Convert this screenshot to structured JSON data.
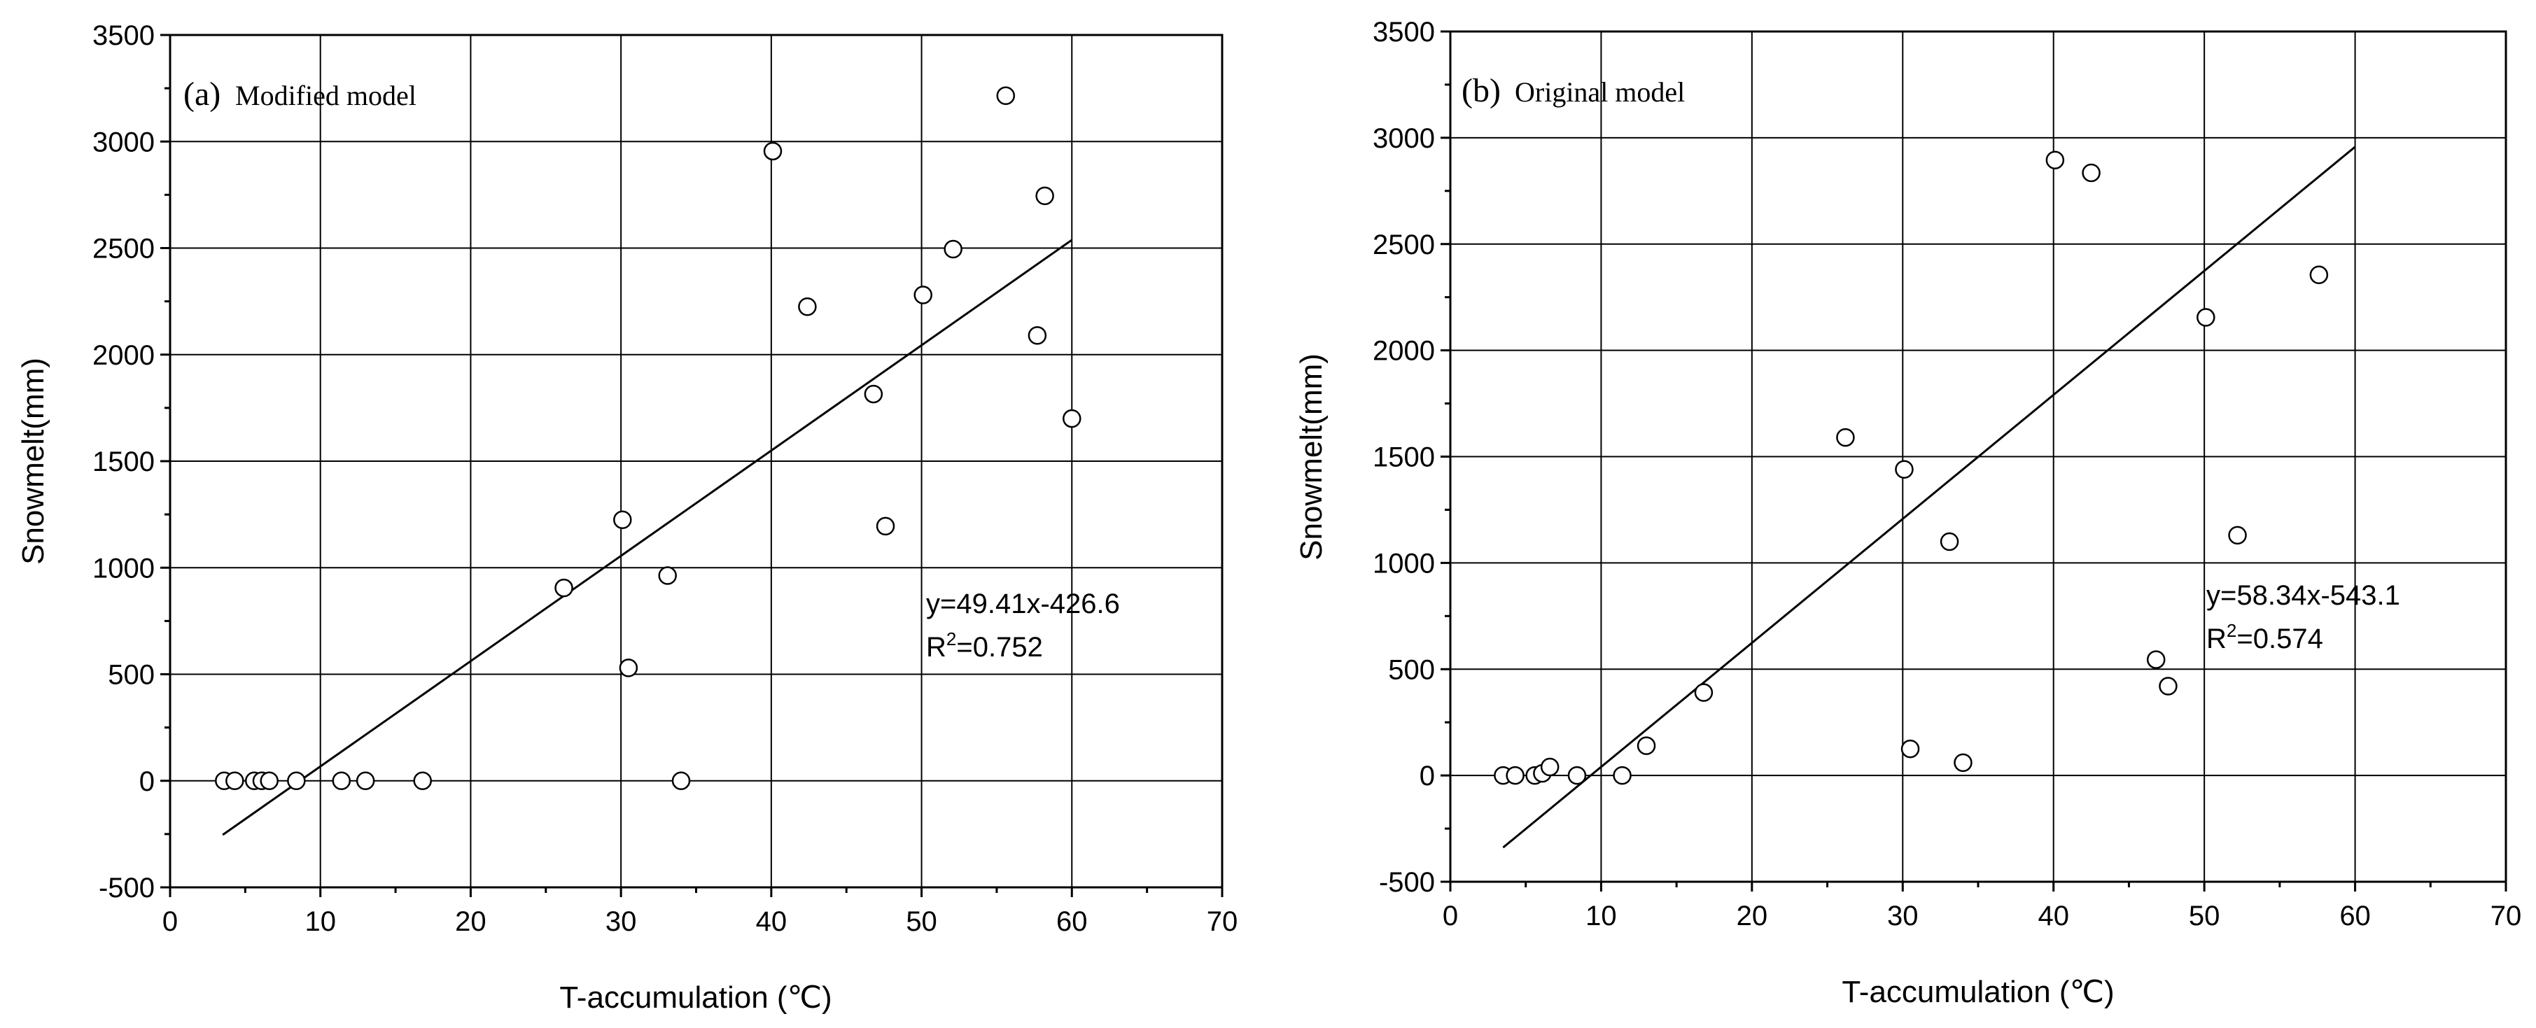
{
  "chart_data": [
    {
      "type": "scatter",
      "panel_label": "(a)",
      "subtitle": "Modified model",
      "xlabel": "T-accumulation (℃)",
      "ylabel": "Snowmelt(mm)",
      "xlim": [
        0,
        70
      ],
      "ylim": [
        -500,
        3500
      ],
      "xticks": [
        0,
        10,
        20,
        30,
        40,
        50,
        60,
        70
      ],
      "yticks": [
        -500,
        0,
        500,
        1000,
        1500,
        2000,
        2500,
        3000,
        3500
      ],
      "grid": true,
      "points": [
        {
          "x": 3.6,
          "y": 0
        },
        {
          "x": 4.3,
          "y": 0
        },
        {
          "x": 5.6,
          "y": 0
        },
        {
          "x": 6.1,
          "y": 0
        },
        {
          "x": 6.6,
          "y": 0
        },
        {
          "x": 8.4,
          "y": 0
        },
        {
          "x": 11.4,
          "y": 0
        },
        {
          "x": 13.0,
          "y": 0
        },
        {
          "x": 16.8,
          "y": 0
        },
        {
          "x": 26.2,
          "y": 905
        },
        {
          "x": 30.1,
          "y": 1225
        },
        {
          "x": 30.5,
          "y": 530
        },
        {
          "x": 33.1,
          "y": 963
        },
        {
          "x": 34.0,
          "y": 0
        },
        {
          "x": 40.1,
          "y": 2955
        },
        {
          "x": 42.4,
          "y": 2225
        },
        {
          "x": 46.8,
          "y": 1815
        },
        {
          "x": 47.6,
          "y": 1195
        },
        {
          "x": 50.1,
          "y": 2280
        },
        {
          "x": 52.1,
          "y": 2495
        },
        {
          "x": 55.6,
          "y": 3215
        },
        {
          "x": 57.7,
          "y": 2090
        },
        {
          "x": 58.2,
          "y": 2745
        },
        {
          "x": 60.0,
          "y": 1700
        }
      ],
      "fit": {
        "slope": 49.41,
        "intercept": -426.6,
        "x_range": [
          3.5,
          60.0
        ]
      },
      "equation": "y=49.41x-426.6",
      "r2_prefix": "R",
      "r2_sup": "2",
      "r2_value": "=0.752"
    },
    {
      "type": "scatter",
      "panel_label": "(b)",
      "subtitle": "Original model",
      "xlabel": "T-accumulation (℃)",
      "ylabel": "Snowmelt(mm)",
      "xlim": [
        0,
        70
      ],
      "ylim": [
        -500,
        3500
      ],
      "xticks": [
        0,
        10,
        20,
        30,
        40,
        50,
        60,
        70
      ],
      "yticks": [
        -500,
        0,
        500,
        1000,
        1500,
        2000,
        2500,
        3000,
        3500
      ],
      "grid": true,
      "points": [
        {
          "x": 3.5,
          "y": 0
        },
        {
          "x": 4.3,
          "y": 0
        },
        {
          "x": 5.6,
          "y": 0
        },
        {
          "x": 6.1,
          "y": 10
        },
        {
          "x": 6.6,
          "y": 40
        },
        {
          "x": 8.4,
          "y": 0
        },
        {
          "x": 11.4,
          "y": 0
        },
        {
          "x": 13.0,
          "y": 140
        },
        {
          "x": 16.8,
          "y": 390
        },
        {
          "x": 26.2,
          "y": 1590
        },
        {
          "x": 30.1,
          "y": 1440
        },
        {
          "x": 30.5,
          "y": 125
        },
        {
          "x": 33.1,
          "y": 1100
        },
        {
          "x": 34.0,
          "y": 60
        },
        {
          "x": 40.1,
          "y": 2895
        },
        {
          "x": 42.5,
          "y": 2835
        },
        {
          "x": 46.8,
          "y": 545
        },
        {
          "x": 47.6,
          "y": 420
        },
        {
          "x": 50.1,
          "y": 2155
        },
        {
          "x": 52.2,
          "y": 1130
        },
        {
          "x": 57.6,
          "y": 2355
        }
      ],
      "fit": {
        "slope": 58.34,
        "intercept": -543.1,
        "x_range": [
          3.5,
          60.0
        ]
      },
      "equation": "y=58.34x-543.1",
      "r2_prefix": "R",
      "r2_sup": "2",
      "r2_value": "=0.574"
    }
  ]
}
